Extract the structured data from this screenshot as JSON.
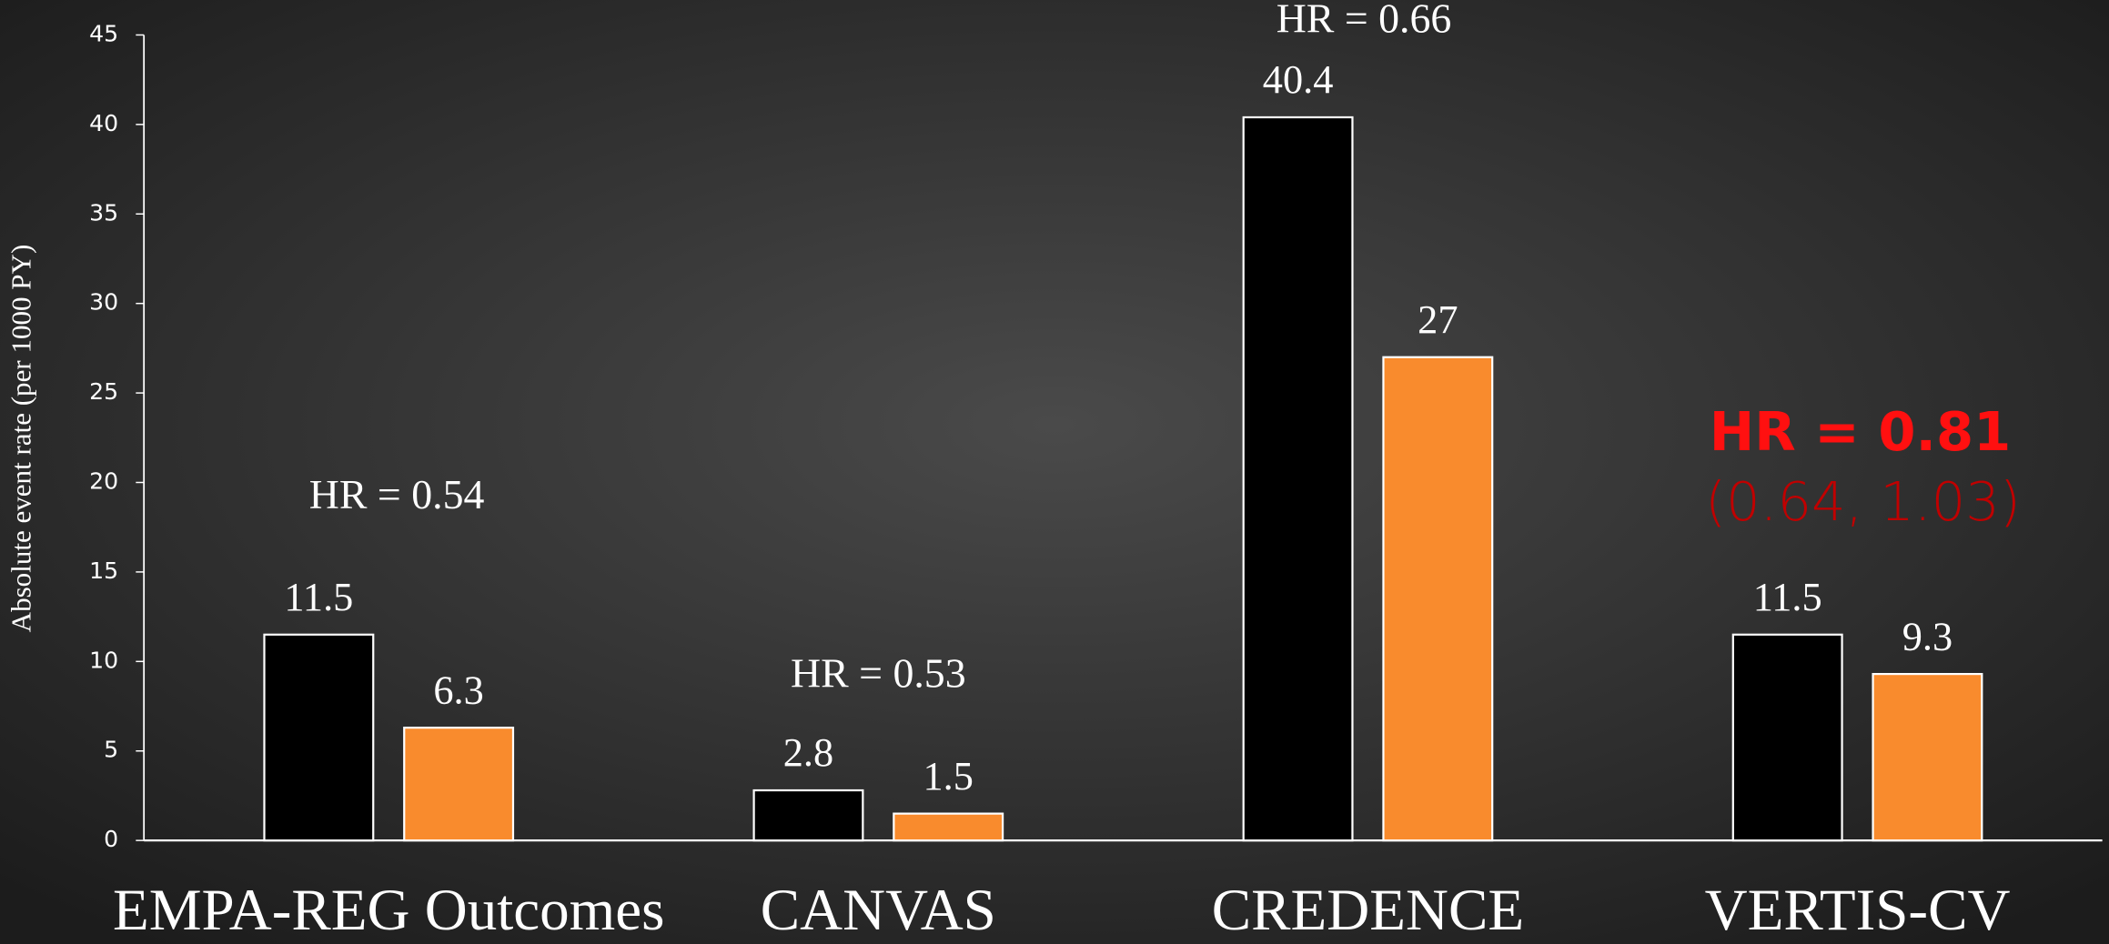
{
  "chart_data": {
    "type": "bar",
    "ylabel": "Absolute event rate (per 1000 PY)",
    "categories": [
      "EMPA-REG Outcomes",
      "CANVAS",
      "CREDENCE",
      "VERTIS-CV"
    ],
    "series": [
      {
        "color": "#000000",
        "values": [
          11.5,
          2.8,
          40.4,
          11.5
        ]
      },
      {
        "color": "#f98b2d",
        "values": [
          6.3,
          1.5,
          27,
          9.3
        ]
      }
    ],
    "annotations": [
      "HR = 0.54",
      "HR = 0.53",
      "HR = 0.66",
      "HR = 0.81",
      "(0.64, 1.03)"
    ],
    "ylim": [
      0,
      45
    ],
    "yticks": [
      0,
      5,
      10,
      15,
      20,
      25,
      30,
      35,
      40,
      45
    ],
    "grid": false
  }
}
